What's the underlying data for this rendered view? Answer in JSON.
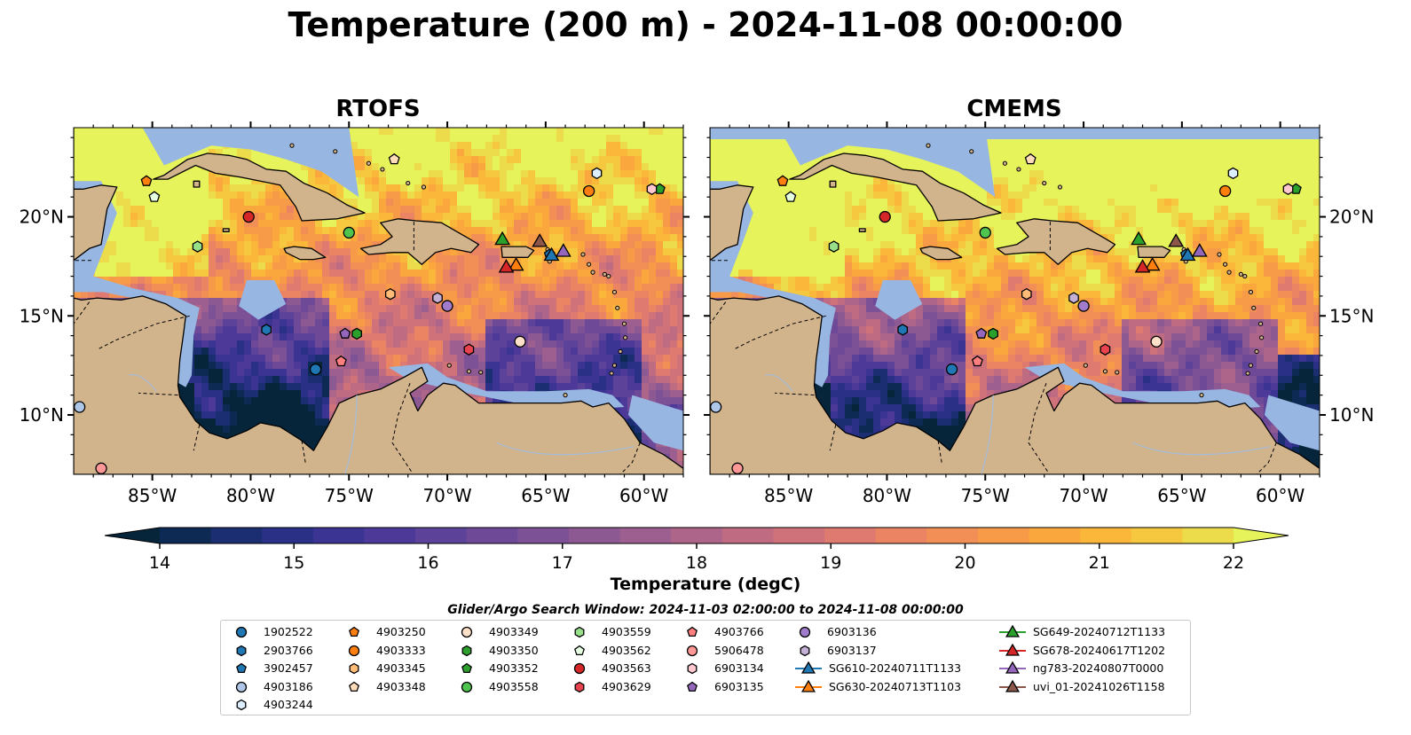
{
  "title": "Temperature (200 m) - 2024-11-08 00:00:00",
  "panels": [
    {
      "title": "RTOFS"
    },
    {
      "title": "CMEMS"
    }
  ],
  "axes": {
    "x_ticks": [
      "85°W",
      "80°W",
      "75°W",
      "70°W",
      "65°W",
      "60°W"
    ],
    "y_ticks": [
      "20°N",
      "15°N",
      "10°N"
    ],
    "lon_range": [
      -89,
      -58
    ],
    "lat_range": [
      7,
      24.5
    ]
  },
  "colorbar": {
    "label": "Temperature (degC)",
    "min": 14,
    "max": 22,
    "ticks": [
      "14",
      "15",
      "16",
      "17",
      "18",
      "19",
      "20",
      "21",
      "22"
    ],
    "extend": "both",
    "colors": [
      "#06243a",
      "#0d2a55",
      "#1c2e72",
      "#2b3087",
      "#3c3493",
      "#4d3a98",
      "#5d429a",
      "#6e4998",
      "#7d5196",
      "#8d5993",
      "#9d5f8f",
      "#ae658a",
      "#bf6b82",
      "#cf727a",
      "#de7a70",
      "#ea8463",
      "#f28f56",
      "#f79b48",
      "#faa83d",
      "#fbb73a",
      "#f6c83f",
      "#ecdb4b",
      "#e6f35b"
    ]
  },
  "land_color": "#d2b48c",
  "shelf_color": "#98b6e2",
  "search_window": "Glider/Argo Search Window: 2024-11-03 02:00:00 to 2024-11-08 00:00:00",
  "platforms": [
    {
      "id": "1902522",
      "marker": "circle",
      "color": "#1f77b4",
      "lon": -76.7,
      "lat": 12.3
    },
    {
      "id": "2903766",
      "marker": "hexagon",
      "color": "#1f77b4",
      "lon": -79.2,
      "lat": 14.3
    },
    {
      "id": "3902457",
      "marker": "pentagon",
      "color": "#1f77b4",
      "lon": -64.8,
      "lat": 18.1
    },
    {
      "id": "4903186",
      "marker": "circle",
      "color": "#aec7e8",
      "lon": -88.7,
      "lat": 10.4
    },
    {
      "id": "4903244",
      "marker": "hexagon",
      "color": "#ddeeff",
      "lon": -62.4,
      "lat": 22.2
    },
    {
      "id": "4903250",
      "marker": "pentagon",
      "color": "#ff7f0e",
      "lon": -85.3,
      "lat": 21.8
    },
    {
      "id": "4903333",
      "marker": "circle",
      "color": "#ff7f0e",
      "lon": -62.8,
      "lat": 21.3
    },
    {
      "id": "4903345",
      "marker": "hexagon",
      "color": "#ffbb78",
      "lon": -72.9,
      "lat": 16.1
    },
    {
      "id": "4903348",
      "marker": "pentagon",
      "color": "#ffddbb",
      "lon": -72.7,
      "lat": 22.9
    },
    {
      "id": "4903349",
      "marker": "circle",
      "color": "#ffe0c8",
      "lon": -66.3,
      "lat": 13.7
    },
    {
      "id": "4903350",
      "marker": "hexagon",
      "color": "#2ca02c",
      "lon": -74.6,
      "lat": 14.1
    },
    {
      "id": "4903352",
      "marker": "pentagon",
      "color": "#2ca02c",
      "lon": -59.2,
      "lat": 21.4
    },
    {
      "id": "4903558",
      "marker": "circle",
      "color": "#4fc44f",
      "lon": -75.0,
      "lat": 19.2
    },
    {
      "id": "4903559",
      "marker": "hexagon",
      "color": "#98df8a",
      "lon": -82.7,
      "lat": 18.5
    },
    {
      "id": "4903562",
      "marker": "pentagon",
      "color": "#e6ffe0",
      "lon": -84.9,
      "lat": 21.0
    },
    {
      "id": "4903563",
      "marker": "circle",
      "color": "#d62728",
      "lon": -80.1,
      "lat": 20.0
    },
    {
      "id": "4903629",
      "marker": "hexagon",
      "color": "#e8434f",
      "lon": -68.9,
      "lat": 13.3
    },
    {
      "id": "4903766",
      "marker": "pentagon",
      "color": "#ff7f7f",
      "lon": -75.4,
      "lat": 12.7
    },
    {
      "id": "5906478",
      "marker": "circle",
      "color": "#ff9896",
      "lon": -87.6,
      "lat": 7.3
    },
    {
      "id": "6903134",
      "marker": "hexagon",
      "color": "#ffc8d0",
      "lon": -59.6,
      "lat": 21.4
    },
    {
      "id": "6903135",
      "marker": "pentagon",
      "color": "#9467bd",
      "lon": -75.2,
      "lat": 14.1
    },
    {
      "id": "6903136",
      "marker": "circle",
      "color": "#a27ccc",
      "lon": -70.0,
      "lat": 15.5
    },
    {
      "id": "6903137",
      "marker": "hexagon",
      "color": "#c5b0d5",
      "lon": -70.5,
      "lat": 15.9
    },
    {
      "id": "SG610-20240711T1133",
      "marker": "triangle",
      "color": "#1f77b4",
      "lon": -64.7,
      "lat": 18.1
    },
    {
      "id": "SG630-20240713T1103",
      "marker": "triangle",
      "color": "#ff7f0e",
      "lon": -66.5,
      "lat": 17.6
    },
    {
      "id": "SG649-20240712T1133",
      "marker": "triangle",
      "color": "#2ca02c",
      "lon": -67.2,
      "lat": 18.9
    },
    {
      "id": "SG678-20240617T1202",
      "marker": "triangle",
      "color": "#d62728",
      "lon": -67.0,
      "lat": 17.5
    },
    {
      "id": "ng783-20240807T0000",
      "marker": "triangle",
      "color": "#9467bd",
      "lon": -64.1,
      "lat": 18.3
    },
    {
      "id": "uvi_01-20241026T1158",
      "marker": "triangle",
      "color": "#8c564b",
      "lon": -65.3,
      "lat": 18.8
    }
  ]
}
